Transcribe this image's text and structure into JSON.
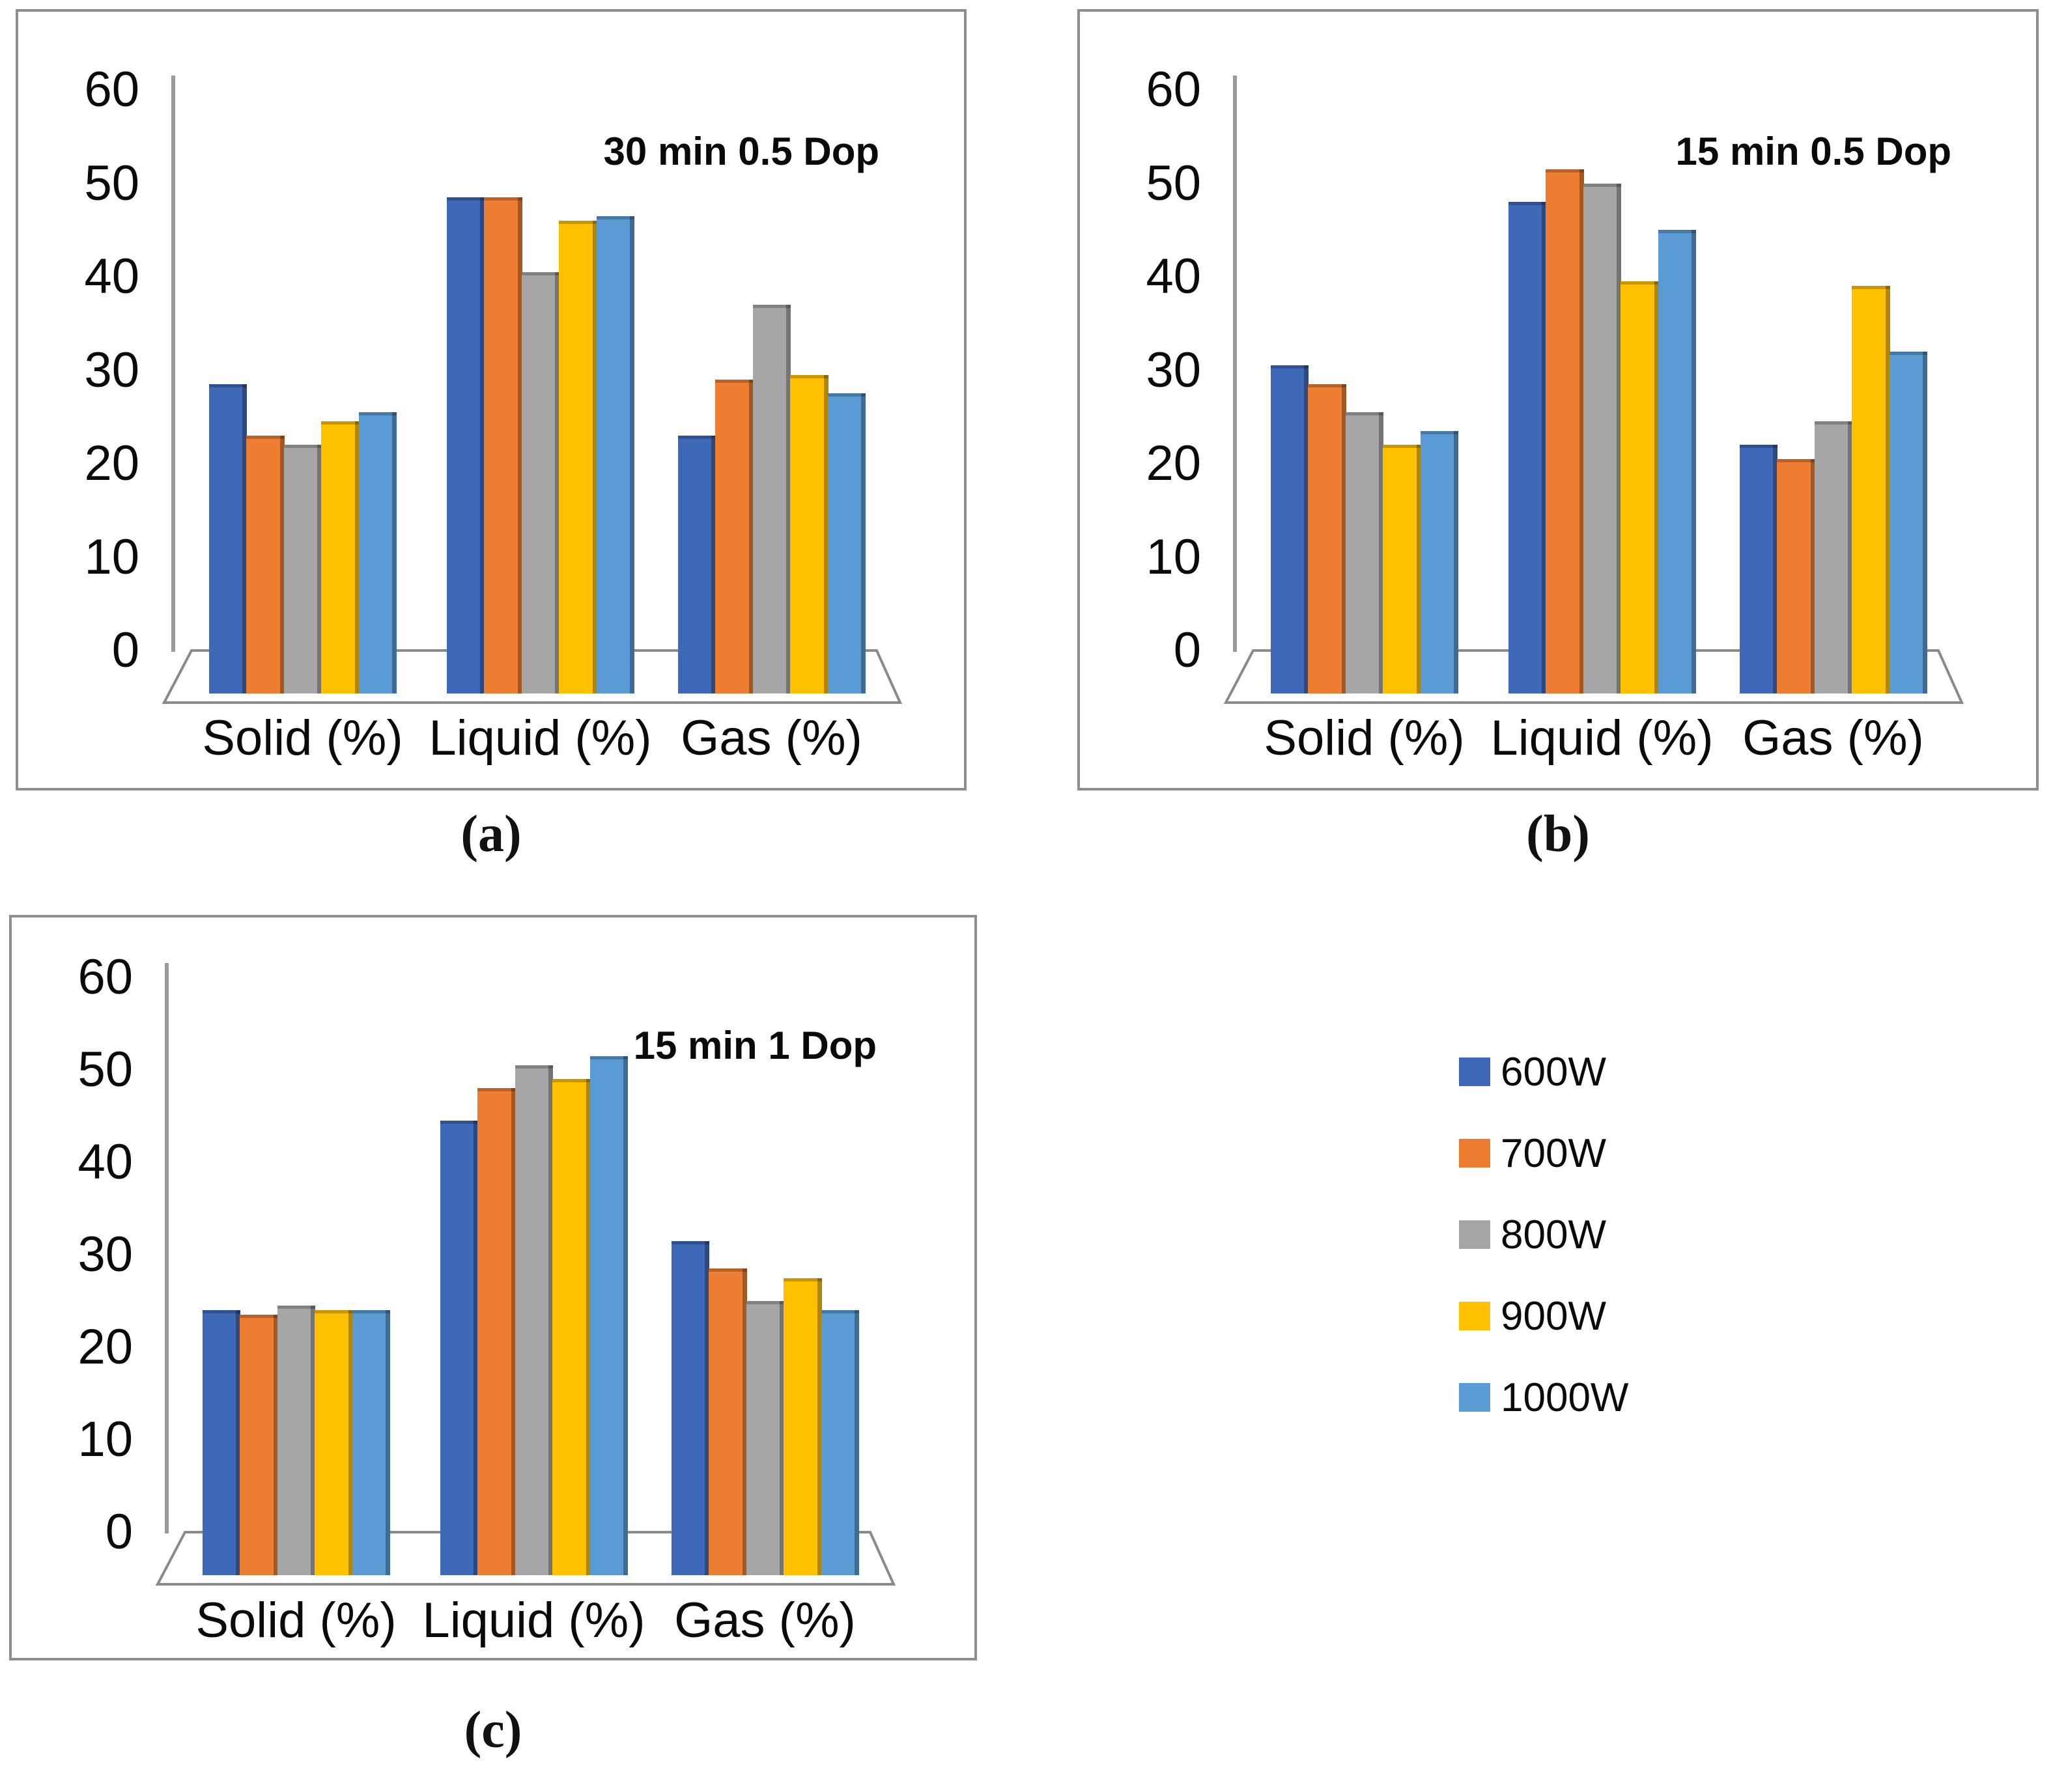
{
  "legend": {
    "items": [
      {
        "label": "600W",
        "color": "#3E68B8"
      },
      {
        "label": "700W",
        "color": "#ED7D31"
      },
      {
        "label": "800W",
        "color": "#A6A6A6"
      },
      {
        "label": "900W",
        "color": "#FFC000"
      },
      {
        "label": "1000W",
        "color": "#5B9BD5"
      }
    ]
  },
  "chart_data": [
    {
      "id": "a",
      "type": "bar",
      "title": "30 min 0.5 Dop",
      "caption": "(a)",
      "categories": [
        "Solid (%)",
        "Liquid (%)",
        "Gas (%)"
      ],
      "y_ticks": [
        "60",
        "50",
        "40",
        "30",
        "20",
        "10",
        "0"
      ],
      "ylim": [
        0,
        60
      ],
      "grid": false,
      "legend_position": "none",
      "series": [
        {
          "name": "600W",
          "values": [
            28.5,
            48.5,
            23
          ]
        },
        {
          "name": "700W",
          "values": [
            23,
            48.5,
            29
          ]
        },
        {
          "name": "800W",
          "values": [
            22,
            40.5,
            37
          ]
        },
        {
          "name": "900W",
          "values": [
            24.5,
            46,
            29.5
          ]
        },
        {
          "name": "1000W",
          "values": [
            25.5,
            46.5,
            27.5
          ]
        }
      ]
    },
    {
      "id": "b",
      "type": "bar",
      "title": "15 min 0.5 Dop",
      "caption": "(b)",
      "categories": [
        "Solid (%)",
        "Liquid (%)",
        "Gas (%)"
      ],
      "y_ticks": [
        "60",
        "50",
        "40",
        "30",
        "20",
        "10",
        "0"
      ],
      "ylim": [
        0,
        60
      ],
      "grid": false,
      "legend_position": "none",
      "series": [
        {
          "name": "600W",
          "values": [
            30.5,
            48,
            22
          ]
        },
        {
          "name": "700W",
          "values": [
            28.5,
            51.5,
            20.5
          ]
        },
        {
          "name": "800W",
          "values": [
            25.5,
            50,
            24.5
          ]
        },
        {
          "name": "900W",
          "values": [
            22,
            39.5,
            39
          ]
        },
        {
          "name": "1000W",
          "values": [
            23.5,
            45,
            32
          ]
        }
      ]
    },
    {
      "id": "c",
      "type": "bar",
      "title": "15 min 1 Dop",
      "caption": "(c)",
      "categories": [
        "Solid (%)",
        "Liquid (%)",
        "Gas (%)"
      ],
      "y_ticks": [
        "60",
        "50",
        "40",
        "30",
        "20",
        "10",
        "0"
      ],
      "ylim": [
        0,
        60
      ],
      "grid": false,
      "legend_position": "none",
      "series": [
        {
          "name": "600W",
          "values": [
            24,
            44.5,
            31.5
          ]
        },
        {
          "name": "700W",
          "values": [
            23.5,
            48,
            28.5
          ]
        },
        {
          "name": "800W",
          "values": [
            24.5,
            50.5,
            25
          ]
        },
        {
          "name": "900W",
          "values": [
            24,
            49,
            27.5
          ]
        },
        {
          "name": "1000W",
          "values": [
            24,
            51.5,
            24
          ]
        }
      ]
    }
  ]
}
